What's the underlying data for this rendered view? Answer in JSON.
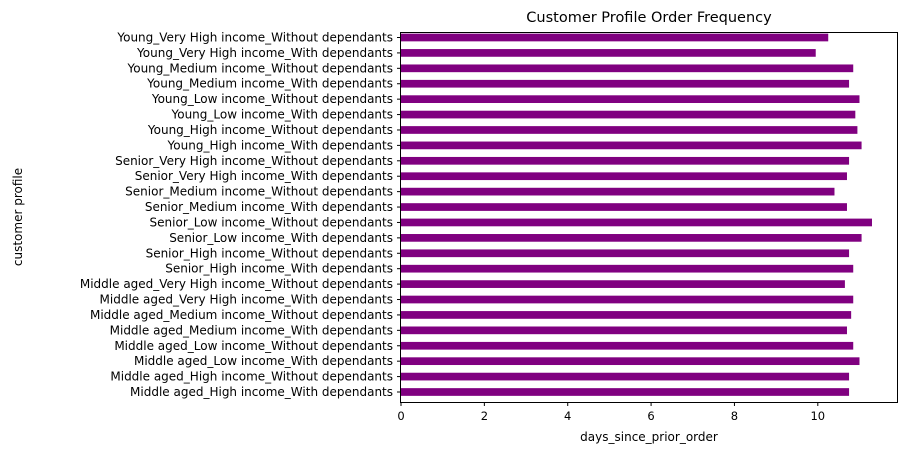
{
  "chart_data": {
    "type": "bar",
    "orientation": "horizontal",
    "title": "Customer Profile Order Frequency",
    "xlabel": "days_since_prior_order",
    "ylabel": "customer profile",
    "xlim": [
      0,
      11.9
    ],
    "xticks": [
      0,
      2,
      4,
      6,
      8,
      10
    ],
    "grid": false,
    "legend": "none",
    "bar_color": "#800080",
    "categories": [
      "Young_Very High income_Without dependants",
      "Young_Very High income_With dependants",
      "Young_Medium income_Without dependants",
      "Young_Medium income_With dependants",
      "Young_Low income_Without dependants",
      "Young_Low income_With dependants",
      "Young_High income_Without dependants",
      "Young_High income_With dependants",
      "Senior_Very High income_Without dependants",
      "Senior_Very High income_With dependants",
      "Senior_Medium income_Without dependants",
      "Senior_Medium income_With dependants",
      "Senior_Low income_Without dependants",
      "Senior_Low income_With dependants",
      "Senior_High income_Without dependants",
      "Senior_High income_With dependants",
      "Middle aged_Very High income_Without dependants",
      "Middle aged_Very High income_With dependants",
      "Middle aged_Medium income_Without dependants",
      "Middle aged_Medium income_With dependants",
      "Middle aged_Low income_Without dependants",
      "Middle aged_Low income_With dependants",
      "Middle aged_High income_Without dependants",
      "Middle aged_High income_With dependants"
    ],
    "values": [
      10.25,
      9.95,
      10.85,
      10.75,
      11.0,
      10.9,
      10.95,
      11.05,
      10.75,
      10.7,
      10.4,
      10.7,
      11.3,
      11.05,
      10.75,
      10.85,
      10.65,
      10.85,
      10.8,
      10.7,
      10.85,
      11.0,
      10.75,
      10.75
    ]
  }
}
